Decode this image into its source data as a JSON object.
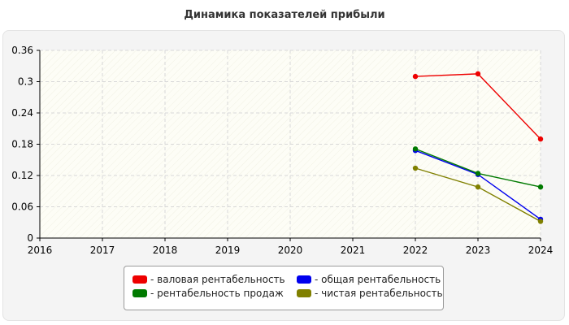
{
  "chart_data": {
    "type": "line",
    "title": "Динамика показателей прибыли",
    "xlabel": "",
    "ylabel": "",
    "x": [
      2016,
      2017,
      2018,
      2019,
      2020,
      2021,
      2022,
      2023,
      2024
    ],
    "x_tick_labels": [
      "2016",
      "2017",
      "2018",
      "2019",
      "2020",
      "2021",
      "2022",
      "2023",
      "2024"
    ],
    "y_tick_labels": [
      "0",
      "0.06",
      "0.12",
      "0.18",
      "0.24",
      "0.3",
      "0.36"
    ],
    "ylim": [
      0,
      0.36
    ],
    "grid": true,
    "legend_position": "bottom",
    "series": [
      {
        "name": "- валовая рентабельность",
        "color": "#ee0000",
        "values": [
          null,
          null,
          null,
          null,
          null,
          null,
          0.31,
          0.315,
          0.19
        ]
      },
      {
        "name": "- общая рентабельность",
        "color": "#0000ee",
        "values": [
          null,
          null,
          null,
          null,
          null,
          null,
          0.168,
          0.122,
          0.036
        ]
      },
      {
        "name": "- рентабельность продаж",
        "color": "#007a00",
        "values": [
          null,
          null,
          null,
          null,
          null,
          null,
          0.171,
          0.124,
          0.098
        ]
      },
      {
        "name": "- чистая рентабельность",
        "color": "#808000",
        "values": [
          null,
          null,
          null,
          null,
          null,
          null,
          0.134,
          0.098,
          0.032
        ]
      }
    ]
  }
}
